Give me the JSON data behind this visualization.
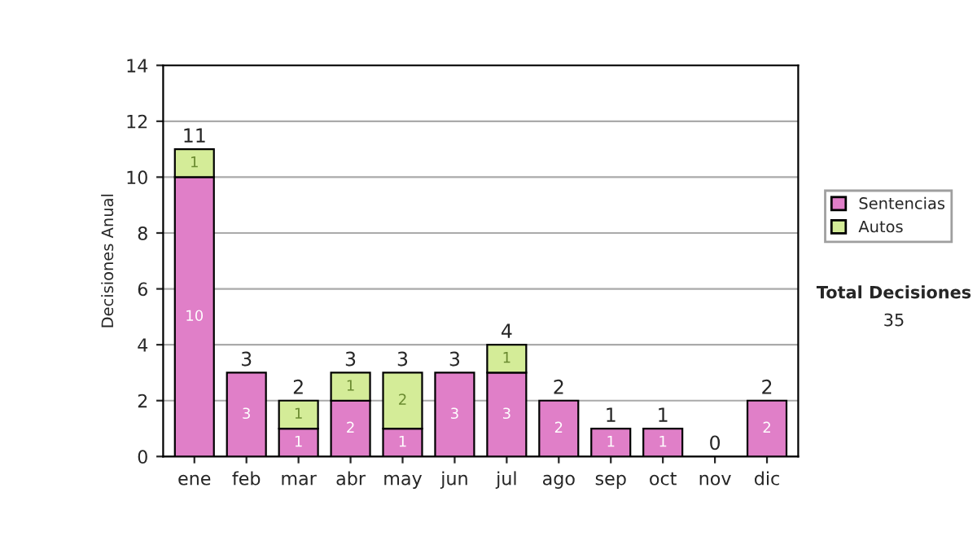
{
  "chart_data": {
    "type": "bar",
    "stacked": true,
    "ylabel": "Decisiones Anual",
    "categories": [
      "ene",
      "feb",
      "mar",
      "abr",
      "may",
      "jun",
      "jul",
      "ago",
      "sep",
      "oct",
      "nov",
      "dic"
    ],
    "series": [
      {
        "name": "Sentencias",
        "color": "#e07fc8",
        "values": [
          10,
          3,
          1,
          2,
          1,
          3,
          3,
          2,
          1,
          1,
          0,
          2
        ],
        "value_labels": [
          "10",
          "3",
          "1",
          "2",
          "1",
          "3",
          "3",
          "2",
          "1",
          "1",
          null,
          "2"
        ]
      },
      {
        "name": "Autos",
        "color": "#d4ec98",
        "values": [
          1,
          0,
          1,
          1,
          2,
          0,
          1,
          0,
          0,
          0,
          0,
          0
        ],
        "value_labels": [
          "1",
          null,
          "1",
          "1",
          "2",
          null,
          "1",
          null,
          null,
          null,
          null,
          null
        ]
      }
    ],
    "totals": [
      "11",
      "3",
      "2",
      "3",
      "3",
      "3",
      "4",
      "2",
      "1",
      "1",
      "0",
      "2"
    ],
    "ylim": [
      0,
      14
    ],
    "yticks": [
      0,
      2,
      4,
      6,
      8,
      10,
      12,
      14
    ],
    "grid": "y",
    "legend": "right",
    "annotations": [
      "Total Decisiones",
      "35"
    ]
  }
}
